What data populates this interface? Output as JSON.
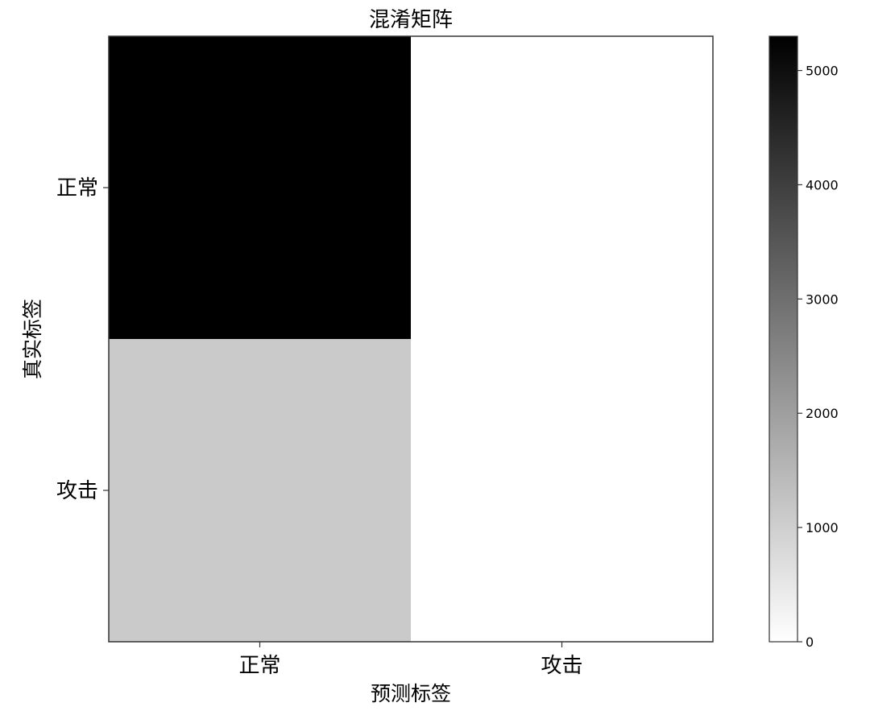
{
  "chart_data": {
    "type": "heatmap",
    "title": "混淆矩阵",
    "xlabel": "预测标签",
    "ylabel": "真实标签",
    "x_categories": [
      "正常",
      "攻击"
    ],
    "y_categories": [
      "正常",
      "攻击"
    ],
    "matrix": [
      [
        5300,
        0
      ],
      [
        1100,
        0
      ]
    ],
    "colormap": "Greys",
    "colorbar": {
      "vmin": 0,
      "vmax": 5300,
      "ticks": [
        0,
        1000,
        2000,
        3000,
        4000,
        5000
      ],
      "tick_labels": [
        "0",
        "1000",
        "2000",
        "3000",
        "4000",
        "5000"
      ]
    },
    "grid": false
  }
}
